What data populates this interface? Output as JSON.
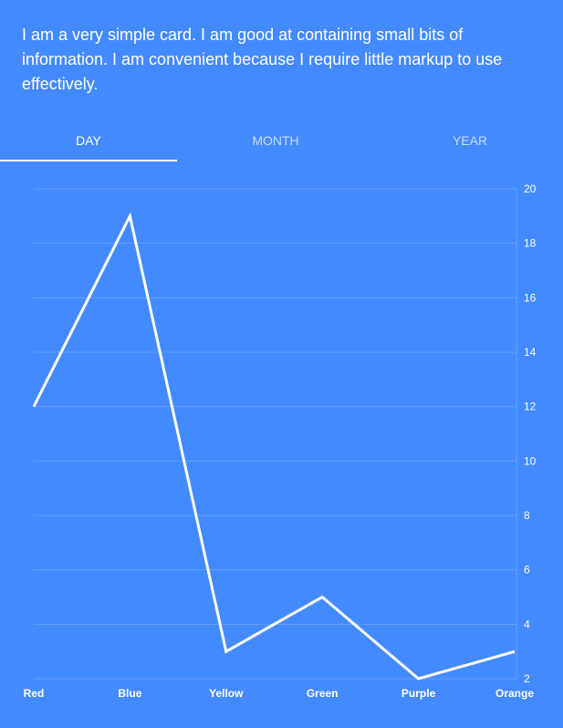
{
  "card": {
    "text": "I am a very simple card. I am good at containing small bits of information. I am convenient because I require little markup to use effectively."
  },
  "tabs": [
    {
      "label": "DAY",
      "active": true
    },
    {
      "label": "MONTH",
      "active": false
    },
    {
      "label": "YEAR",
      "active": false
    }
  ],
  "colors": {
    "background": "#448aff",
    "line": "#ffffff",
    "grid": "rgba(255,255,255,0.18)"
  },
  "chart_data": {
    "type": "line",
    "categories": [
      "Red",
      "Blue",
      "Yellow",
      "Green",
      "Purple",
      "Orange"
    ],
    "values": [
      12,
      19,
      3,
      5,
      2,
      3
    ],
    "yticks": [
      2,
      4,
      6,
      8,
      10,
      12,
      14,
      16,
      18,
      20
    ],
    "ylim": [
      2,
      20
    ],
    "grid": true,
    "yaxis_position": "right"
  }
}
